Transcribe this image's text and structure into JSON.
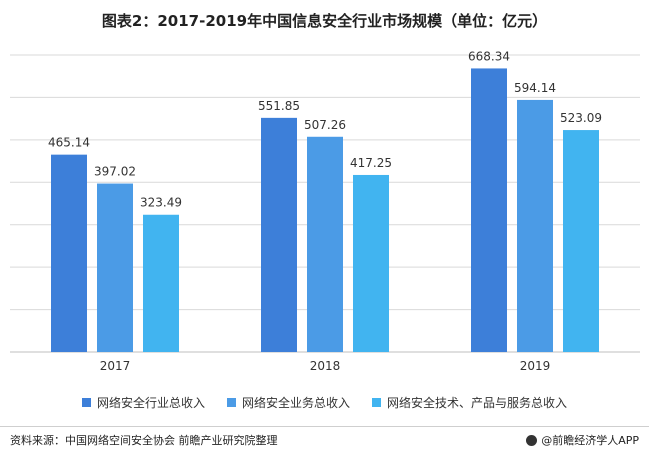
{
  "title": "图表2：2017-2019年中国信息安全行业市场规模（单位：亿元）",
  "footer": {
    "source": "资料来源：中国网络空间安全协会 前瞻产业研究院整理",
    "brand": "@前瞻经济学人APP"
  },
  "colors": {
    "series": [
      "#3d7fd9",
      "#4b9be6",
      "#41b4f0"
    ],
    "grid": "#d9d9d9",
    "axis": "#bfbfbf"
  },
  "chart_data": {
    "type": "bar",
    "categories": [
      "2017",
      "2018",
      "2019"
    ],
    "series": [
      {
        "name": "网络安全行业总收入",
        "values": [
          465.14,
          551.85,
          668.34
        ]
      },
      {
        "name": "网络安全业务总收入",
        "values": [
          397.02,
          507.26,
          594.14
        ]
      },
      {
        "name": "网络安全技术、产品与服务总收入",
        "values": [
          323.49,
          417.25,
          523.09
        ]
      }
    ],
    "ylim": [
      0,
      700
    ],
    "grid": true,
    "y_tick_labels_shown": false,
    "data_labels": true,
    "legend_position": "bottom"
  }
}
